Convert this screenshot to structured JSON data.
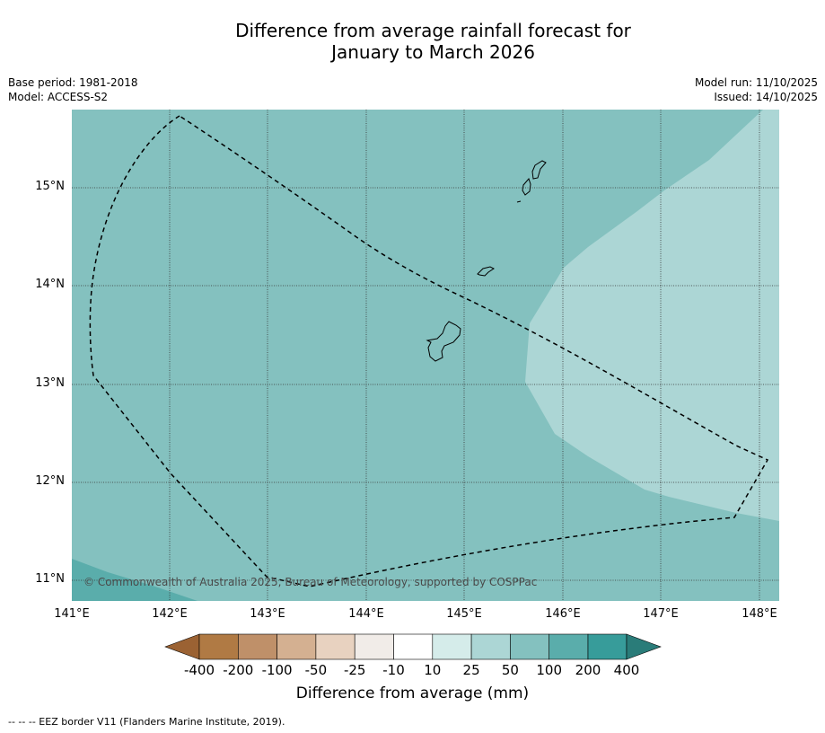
{
  "title": {
    "line1": "Difference from average rainfall forecast for",
    "line2": "January to March 2026"
  },
  "meta": {
    "base_period": "Base period: 1981-2018",
    "model": "Model: ACCESS-S2",
    "model_run": "Model run: 11/10/2025",
    "issued": "Issued: 14/10/2025"
  },
  "map": {
    "latitude_labels": [
      "15°N",
      "14°N",
      "13°N",
      "12°N",
      "11°N"
    ],
    "longitude_labels": [
      "141°E",
      "142°E",
      "143°E",
      "144°E",
      "145°E",
      "146°E",
      "147°E",
      "148°E"
    ],
    "copyright": "© Commonwealth of Australia 2025, Bureau of Meteorology, supported by COSPPac",
    "colors": {
      "band_10_25": "#d5ecea",
      "band_25_50": "#acd6d5",
      "band_50_100": "#84c1bf",
      "band_100_200": "#5aadab",
      "border_line": "#000000",
      "coastline": "#000000"
    }
  },
  "colorbar": {
    "title": "Difference from average (mm)",
    "ticks": [
      "-400",
      "-200",
      "-100",
      "-50",
      "-25",
      "-10",
      "10",
      "25",
      "50",
      "100",
      "200",
      "400"
    ],
    "colors": [
      "#9b6233",
      "#b07a44",
      "#bf9069",
      "#d4b091",
      "#e8d2c0",
      "#f1ece8",
      "#ffffff",
      "#d5ecea",
      "#acd6d5",
      "#84c1bf",
      "#5aadab",
      "#379c9a",
      "#2a7c79"
    ]
  },
  "legend": {
    "footnote": "--  --  -- EEZ border V11 (Flanders Marine Institute, 2019)."
  }
}
